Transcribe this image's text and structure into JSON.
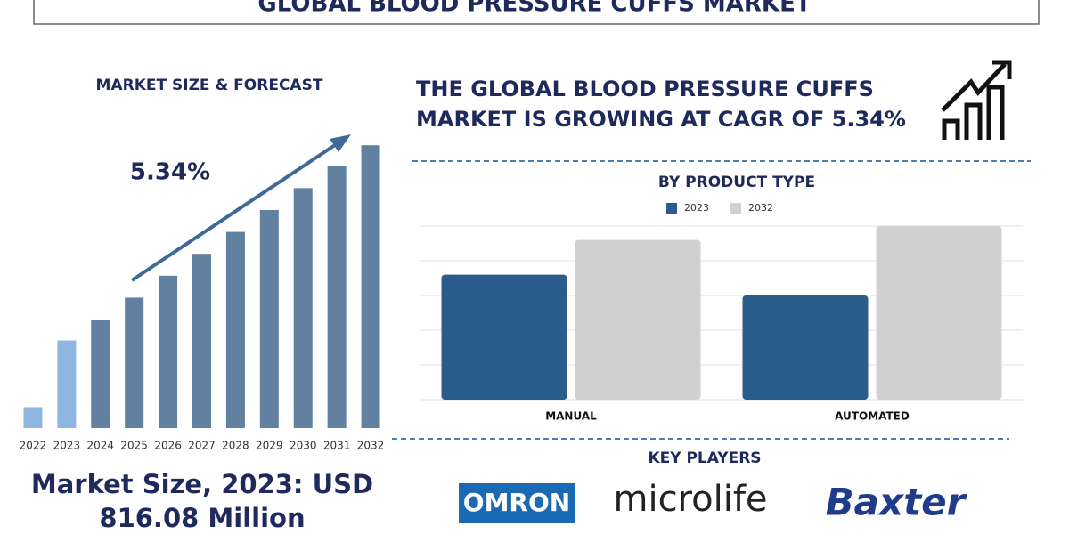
{
  "header": {
    "title": "GLOBAL BLOOD PRESSURE CUFFS MARKET"
  },
  "headline": [
    "THE GLOBAL BLOOD PRESSURE CUFFS",
    "MARKET IS GROWING AT CAGR OF 5.34%"
  ],
  "market_size": [
    "Market Size, 2023: USD",
    "816.08 Million"
  ],
  "key_players": {
    "title": "KEY PLAYERS",
    "logos": [
      "OMRON",
      "microlife",
      "Baxter"
    ]
  },
  "chart_data": [
    {
      "type": "bar",
      "title": "MARKET SIZE & FORECAST",
      "annotation": "5.34%",
      "categories": [
        "2022",
        "2023",
        "2024",
        "2025",
        "2026",
        "2027",
        "2028",
        "2029",
        "2030",
        "2031",
        "2032"
      ],
      "values": [
        22,
        92,
        114,
        137,
        160,
        183,
        206,
        229,
        252,
        275,
        297
      ],
      "colors": [
        "#8db6e0",
        "#8db6e0",
        "#62809f",
        "#62809f",
        "#62809f",
        "#62809f",
        "#62809f",
        "#62809f",
        "#62809f",
        "#62809f",
        "#62809f"
      ],
      "ylim": [
        0,
        300
      ]
    },
    {
      "type": "bar",
      "title": "BY PRODUCT TYPE",
      "categories": [
        "MANUAL",
        "AUTOMATED"
      ],
      "series": [
        {
          "name": "2023",
          "color": "#2a5d8c",
          "values": [
            3.6,
            3.0
          ]
        },
        {
          "name": "2032",
          "color": "#d0d0d0",
          "values": [
            4.6,
            5.0
          ]
        }
      ],
      "ylim": [
        0,
        5
      ],
      "yticks": [
        0,
        1,
        2,
        3,
        4,
        5
      ],
      "grid": true
    }
  ]
}
